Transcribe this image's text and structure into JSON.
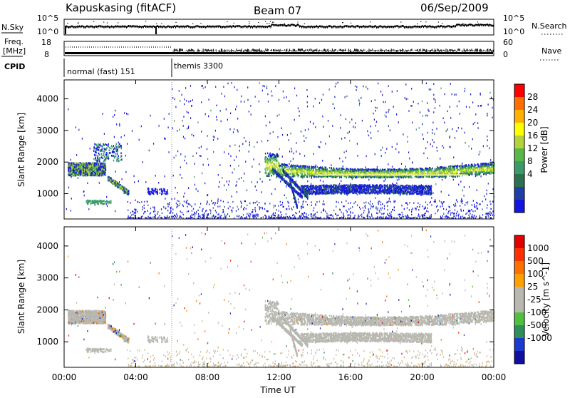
{
  "header": {
    "station": "Kapuskasing (fitACF)",
    "beam": "Beam 07",
    "date": "06/Sep/2009"
  },
  "panels": {
    "nsky_label": "N.Sky",
    "nsearch_label": "N.Search",
    "nsky_ticks": [
      "10^5",
      "10^0"
    ],
    "nsearch_ticks": [
      "10^5",
      "10^0"
    ],
    "freq_label_1": "Freq.",
    "freq_label_2": "[MHz]",
    "freq_ticks": [
      "18",
      "8"
    ],
    "nave_label": "Nave",
    "nave_ticks": [
      "60",
      "0"
    ],
    "cpid_label": "CPID",
    "cpid_segments": [
      {
        "label": "normal (fast) 151",
        "start_hour": 0,
        "end_hour": 6
      },
      {
        "label": "themis 3300",
        "start_hour": 6,
        "end_hour": 24
      }
    ]
  },
  "colors": {
    "power": [
      "#1515e0",
      "#1f3fa8",
      "#2c7050",
      "#3a9a68",
      "#58b84a",
      "#b4d23a",
      "#ffff00",
      "#ffb000",
      "#ff7000",
      "#ff0000"
    ],
    "velocity": [
      "#1010a0",
      "#1a3ad0",
      "#2f8f5a",
      "#50c040",
      "#b8b8b0",
      "#b8b8b0",
      "#ffa000",
      "#ff7000",
      "#ff3000",
      "#e00000"
    ],
    "ground_scatter": "#b8b8b0"
  },
  "chart_data": [
    {
      "type": "heatmap",
      "quantity": "power",
      "ylabel": "Slant Range [km]",
      "colorbar_label": "Power [dB]",
      "colorbar_ticks": [
        "28",
        "24",
        "20",
        "16",
        "12",
        "8",
        "4"
      ],
      "ylim": [
        200,
        4600
      ],
      "yticks": [
        1000,
        2000,
        3000,
        4000
      ],
      "xlim_hours": [
        0,
        24
      ],
      "features": [
        {
          "name": "early echo band",
          "t0": 0.5,
          "t1": 2.2,
          "range_km": [
            1600,
            1950
          ],
          "level": 16
        },
        {
          "name": "main scatter band",
          "t0": 11.2,
          "t1": 24,
          "range_km": [
            1500,
            2000
          ],
          "level": 16
        },
        {
          "name": "lower band",
          "t0": 13.2,
          "t1": 20.5,
          "range_km": [
            900,
            1300
          ],
          "level": 6
        }
      ]
    },
    {
      "type": "heatmap",
      "quantity": "velocity",
      "ylabel": "Slant Range [km]",
      "colorbar_label": "Velocity [m s^-1]",
      "colorbar_ticks": [
        "1000",
        "500",
        "100",
        "25",
        "-25",
        "-100",
        "-500",
        "-1000"
      ],
      "ylim": [
        200,
        4600
      ],
      "yticks": [
        1000,
        2000,
        3000,
        4000
      ],
      "xlabel": "Time UT",
      "xticks": [
        "00:00",
        "04:00",
        "08:00",
        "12:00",
        "16:00",
        "20:00",
        "00:00"
      ],
      "xlim_hours": [
        0,
        24
      ]
    }
  ]
}
